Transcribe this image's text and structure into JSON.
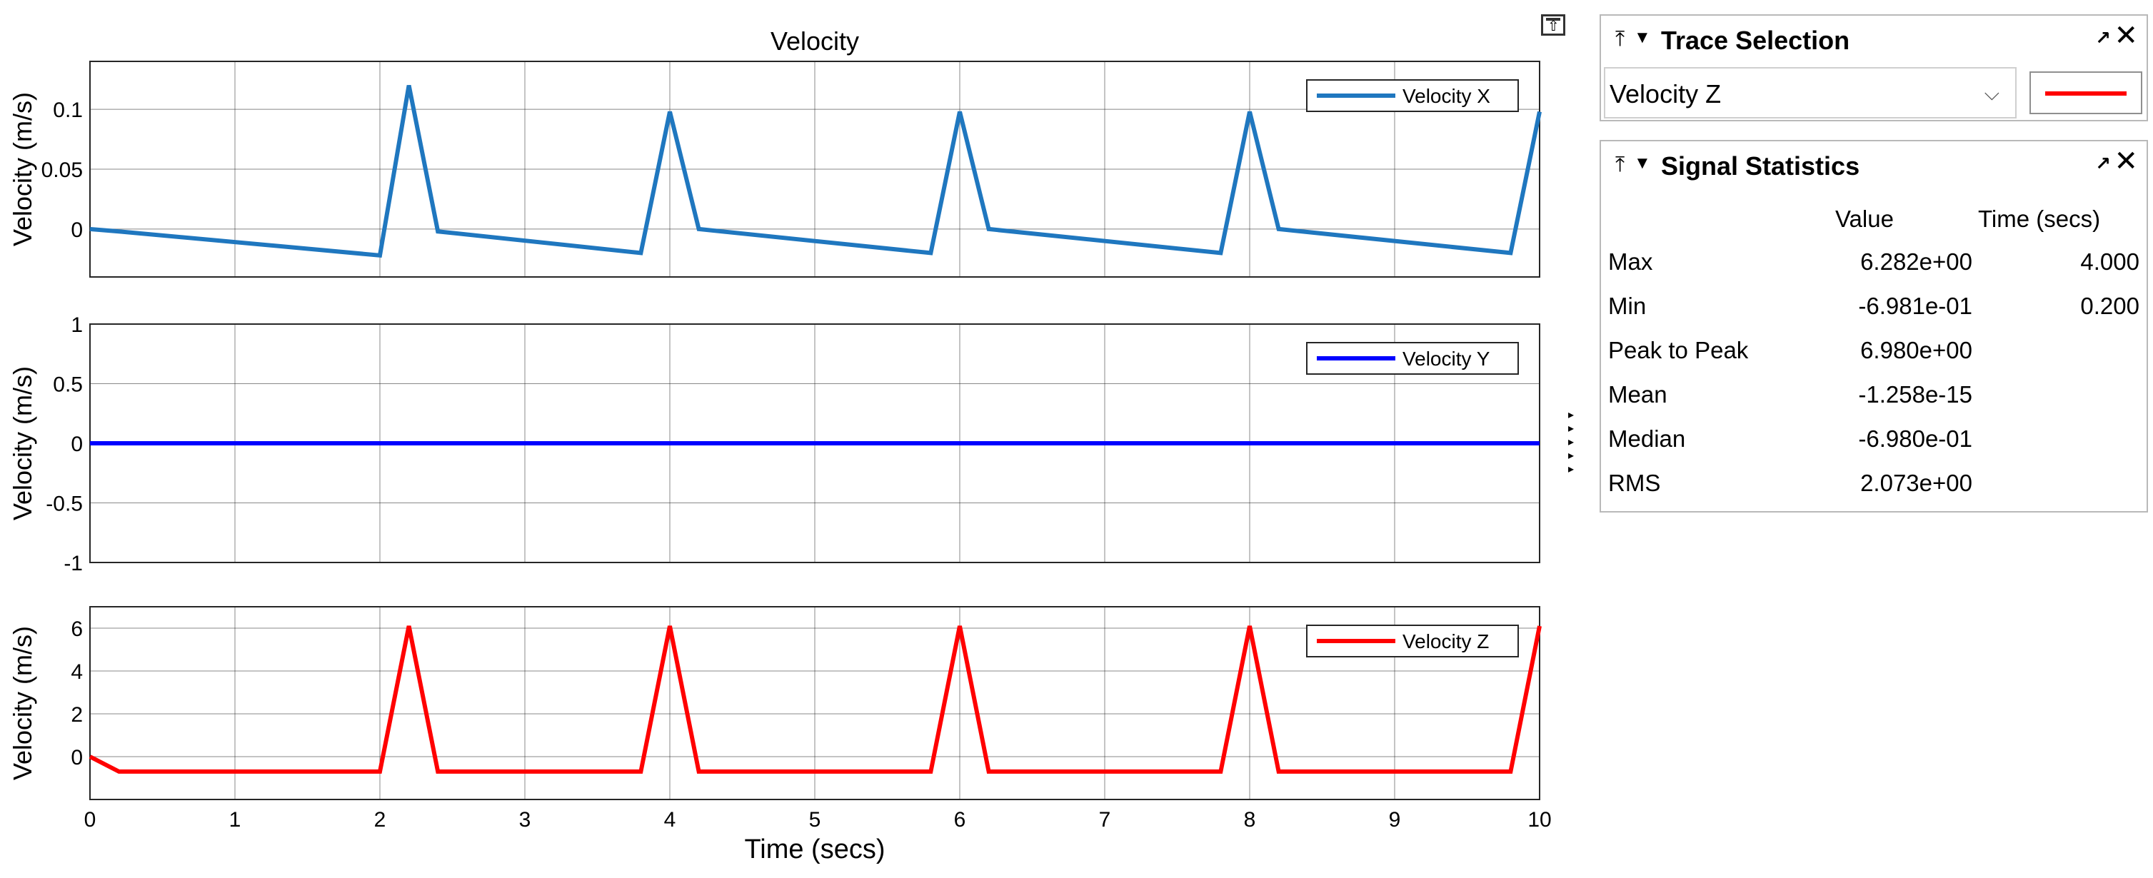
{
  "figure": {
    "title": "Velocity",
    "xlabel": "Time (secs)"
  },
  "chart_data": [
    {
      "type": "line",
      "name": "velocity-x",
      "ylabel": "Velocity (m/s)",
      "legend": "Velocity X",
      "legend_position": "top-right",
      "color": "#1f77bf",
      "xlim": [
        0,
        10
      ],
      "ylim": [
        -0.04,
        0.14
      ],
      "yticks": [
        0,
        0.05,
        0.1
      ],
      "ytick_labels": [
        "0",
        "0.05",
        "0.1"
      ],
      "x": [
        0,
        0.2,
        2.0,
        2.2,
        2.4,
        3.8,
        4.0,
        4.2,
        5.8,
        6.0,
        6.2,
        7.8,
        8.0,
        8.2,
        9.8,
        10.0
      ],
      "y": [
        0,
        -0.002,
        -0.022,
        0.12,
        -0.002,
        -0.02,
        0.098,
        0,
        -0.02,
        0.098,
        0,
        -0.02,
        0.098,
        0,
        -0.02,
        0.098
      ]
    },
    {
      "type": "line",
      "name": "velocity-y",
      "ylabel": "Velocity (m/s)",
      "legend": "Velocity Y",
      "legend_position": "top-right",
      "color": "#0000ff",
      "xlim": [
        0,
        10
      ],
      "ylim": [
        -1,
        1
      ],
      "yticks": [
        -1,
        -0.5,
        0,
        0.5,
        1
      ],
      "ytick_labels": [
        "-1",
        "-0.5",
        "0",
        "0.5",
        "1"
      ],
      "x": [
        0,
        10
      ],
      "y": [
        0,
        0
      ]
    },
    {
      "type": "line",
      "name": "velocity-z",
      "ylabel": "Velocity (m/s)",
      "legend": "Velocity Z",
      "legend_position": "top-right",
      "color": "#ff0000",
      "xlim": [
        0,
        10
      ],
      "ylim": [
        -2,
        7
      ],
      "yticks": [
        0,
        2,
        4,
        6
      ],
      "ytick_labels": [
        "0",
        "2",
        "4",
        "6"
      ],
      "xticks": [
        0,
        1,
        2,
        3,
        4,
        5,
        6,
        7,
        8,
        9,
        10
      ],
      "xtick_labels": [
        "0",
        "1",
        "2",
        "3",
        "4",
        "5",
        "6",
        "7",
        "8",
        "9",
        "10"
      ],
      "x": [
        0,
        0.2,
        2.0,
        2.2,
        2.4,
        3.8,
        4.0,
        4.2,
        5.8,
        6.0,
        6.2,
        7.8,
        8.0,
        8.2,
        9.8,
        10.0
      ],
      "y": [
        0,
        -0.698,
        -0.698,
        6.1,
        -0.698,
        -0.698,
        6.1,
        -0.698,
        -0.698,
        6.1,
        -0.698,
        -0.698,
        6.1,
        -0.698,
        -0.698,
        6.1
      ]
    }
  ],
  "trace_selection": {
    "title": "Trace Selection",
    "selected": "Velocity Z",
    "swatch_color": "#ff0000",
    "pin_glyph": "⤒",
    "caret_glyph": "▼",
    "undock_glyph": "↗",
    "close_glyph": "✕",
    "chevron_glyph": "⌵"
  },
  "signal_statistics": {
    "title": "Signal Statistics",
    "pin_glyph": "⤒",
    "caret_glyph": "▼",
    "undock_glyph": "↗",
    "close_glyph": "✕",
    "columns": {
      "value": "Value",
      "time": "Time (secs)"
    },
    "rows": [
      {
        "label": "Max",
        "value": "6.282e+00",
        "time": "4.000"
      },
      {
        "label": "Min",
        "value": "-6.981e-01",
        "time": "0.200"
      },
      {
        "label": "Peak to Peak",
        "value": "6.980e+00",
        "time": ""
      },
      {
        "label": "Mean",
        "value": "-1.258e-15",
        "time": ""
      },
      {
        "label": "Median",
        "value": "-6.980e-01",
        "time": ""
      },
      {
        "label": "RMS",
        "value": "2.073e+00",
        "time": ""
      }
    ]
  },
  "toolbar": {
    "restore_glyph": "⇧",
    "scroll_glyph": "▸"
  }
}
